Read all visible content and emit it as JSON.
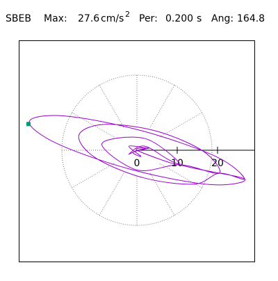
{
  "chart_data": {
    "type": "hodograph",
    "header": [
      "SBEB",
      "Max:",
      "27.6",
      "cm/s",
      "2",
      "Per:",
      "0.200",
      "s",
      "Ang:",
      "164.8"
    ],
    "xticks": [
      0,
      10,
      20
    ],
    "series": [
      {
        "color": "#9900cc",
        "x": [
          0,
          2,
          -2,
          1,
          -1,
          3,
          0,
          10.7,
          2.0,
          -8.7,
          0,
          10.7,
          20.4,
          16.4,
          4.6,
          -8.2,
          -14.4,
          -10.4,
          1.5,
          14.2,
          20.4,
          26.7,
          19.7,
          1.3,
          -17.9,
          -26.7,
          -19.7,
          -1.3,
          17.9,
          26.7,
          10.7,
          2,
          -2,
          0
        ],
        "y": [
          0,
          0.5,
          1,
          -1.5,
          -0.5,
          0.5,
          0,
          -3.6,
          2.9,
          1.6,
          -4.9,
          -3.6,
          -5.7,
          -0.2,
          4.8,
          6.4,
          3.7,
          -1.8,
          -6.8,
          -8.4,
          -5.7,
          -7.1,
          -1.6,
          4.8,
          8.5,
          7.1,
          1.6,
          -4.8,
          -8.5,
          -7.1,
          -3.6,
          1,
          -1,
          0
        ]
      }
    ],
    "peak": {
      "x": -26.9,
      "y": 6.5,
      "color": "#009977"
    }
  }
}
